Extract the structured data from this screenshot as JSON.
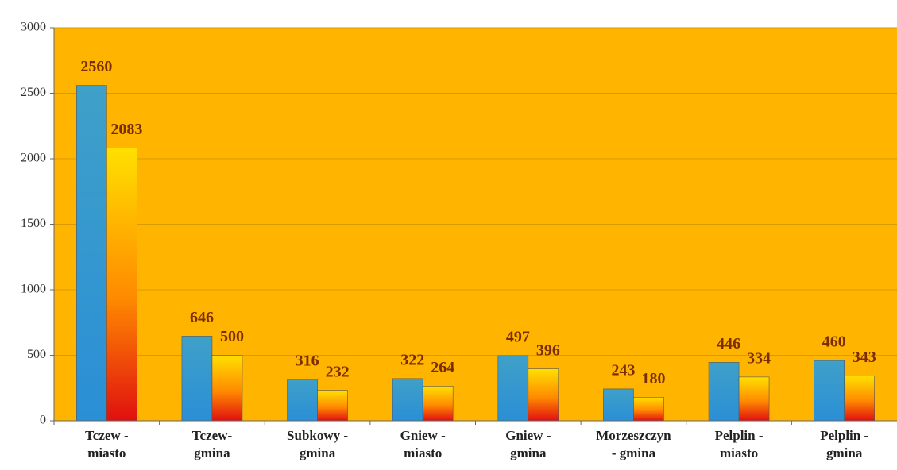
{
  "chart_data": {
    "type": "bar",
    "categories": [
      "Tczew -\nmiasto",
      "Tczew-\ngmina",
      "Subkowy -\ngmina",
      "Gniew -\nmiasto",
      "Gniew -\ngmina",
      "Morzeszczyn\n- gmina",
      "Pelplin -\nmiasto",
      "Pelplin -\ngmina"
    ],
    "series": [
      {
        "color": "#2a8fd6",
        "values": [
          2560,
          646,
          316,
          322,
          497,
          243,
          446,
          460
        ]
      },
      {
        "color": "#ffe000",
        "values": [
          2083,
          500,
          232,
          264,
          396,
          180,
          334,
          343
        ]
      }
    ],
    "ylim": [
      0,
      3000
    ],
    "yticks": [
      0,
      500,
      1000,
      1500,
      2000,
      2500,
      3000
    ],
    "grid": true,
    "background": "#ffb400"
  }
}
